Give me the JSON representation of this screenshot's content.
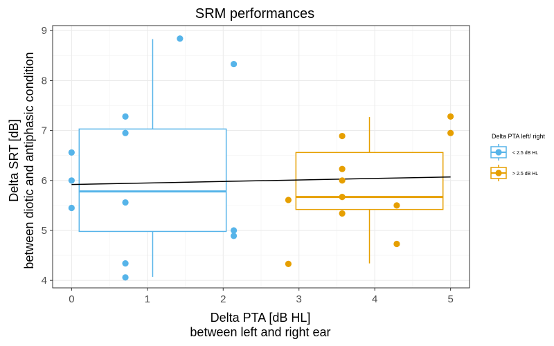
{
  "chart_data": {
    "type": "boxplot",
    "title": "SRM performances",
    "xlabel": [
      "Delta PTA [dB HL]",
      "between left and right ear"
    ],
    "ylabel": [
      "Delta SRT [dB]",
      "between diotic and antiphasic condition"
    ],
    "xlim": [
      -0.25,
      5.25
    ],
    "ylim": [
      3.85,
      9.1
    ],
    "x_ticks": [
      0,
      1,
      2,
      3,
      4,
      5
    ],
    "y_ticks": [
      4,
      5,
      6,
      7,
      8,
      9
    ],
    "grid": true,
    "legend": {
      "title": "Delta PTA left/ right",
      "position": "right",
      "entries": [
        {
          "label": "< 2.5 dB HL",
          "color": "#56B4E9"
        },
        {
          "label": "> 2.5 dB HL",
          "color": "#E69F00"
        }
      ]
    },
    "series": [
      {
        "label": "< 2.5 dB HL",
        "color": "#56B4E9",
        "box": {
          "x_min": 0.1,
          "x_max": 2.04,
          "whisker_x": 1.07,
          "min": 4.07,
          "q1": 4.98,
          "median": 5.78,
          "q3": 7.03,
          "max": 8.83
        },
        "points": [
          {
            "x": 0,
            "y": 6.56
          },
          {
            "x": 0,
            "y": 6.0
          },
          {
            "x": 0,
            "y": 5.45
          },
          {
            "x": 0.71,
            "y": 7.28
          },
          {
            "x": 0.71,
            "y": 6.95
          },
          {
            "x": 0.71,
            "y": 5.56
          },
          {
            "x": 0.71,
            "y": 4.34
          },
          {
            "x": 0.71,
            "y": 4.06
          },
          {
            "x": 1.43,
            "y": 8.84
          },
          {
            "x": 2.14,
            "y": 8.33
          },
          {
            "x": 2.14,
            "y": 5.0
          },
          {
            "x": 2.14,
            "y": 4.89
          }
        ]
      },
      {
        "label": "> 2.5 dB HL",
        "color": "#E69F00",
        "box": {
          "x_min": 2.96,
          "x_max": 4.9,
          "whisker_x": 3.93,
          "min": 4.34,
          "q1": 5.42,
          "median": 5.67,
          "q3": 6.56,
          "max": 7.27
        },
        "points": [
          {
            "x": 2.86,
            "y": 5.61
          },
          {
            "x": 2.86,
            "y": 4.33
          },
          {
            "x": 3.57,
            "y": 6.89
          },
          {
            "x": 3.57,
            "y": 6.23
          },
          {
            "x": 3.57,
            "y": 6.0
          },
          {
            "x": 3.57,
            "y": 5.67
          },
          {
            "x": 3.57,
            "y": 5.34
          },
          {
            "x": 4.29,
            "y": 5.5
          },
          {
            "x": 4.29,
            "y": 4.73
          },
          {
            "x": 5.0,
            "y": 7.28
          },
          {
            "x": 5.0,
            "y": 6.95
          }
        ]
      }
    ],
    "trend_line": {
      "x": [
        0,
        5
      ],
      "y": [
        5.92,
        6.07
      ],
      "color": "#000000"
    }
  }
}
